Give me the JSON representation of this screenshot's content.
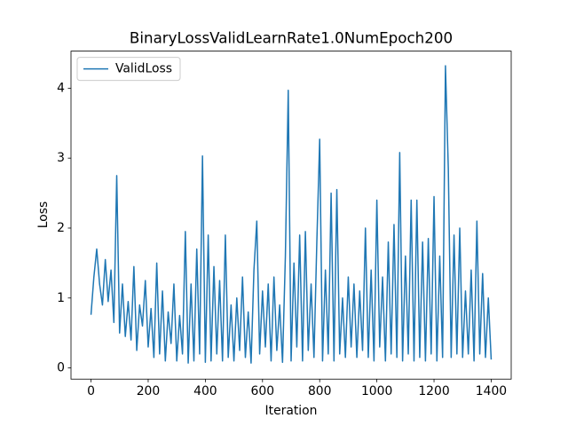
{
  "chart_data": {
    "type": "line",
    "title": "BinaryLossValidLearnRate1.0NumEpoch200",
    "x_label": "Iteration",
    "y_label": "Loss",
    "x": [
      0,
      10,
      20,
      30,
      40,
      50,
      60,
      70,
      80,
      90,
      100,
      110,
      120,
      130,
      140,
      150,
      160,
      170,
      180,
      190,
      200,
      210,
      220,
      230,
      240,
      250,
      260,
      270,
      280,
      290,
      300,
      310,
      320,
      330,
      340,
      350,
      360,
      370,
      380,
      390,
      400,
      410,
      420,
      430,
      440,
      450,
      460,
      470,
      480,
      490,
      500,
      510,
      520,
      530,
      540,
      550,
      560,
      570,
      580,
      590,
      600,
      610,
      620,
      630,
      640,
      650,
      660,
      670,
      680,
      690,
      700,
      710,
      720,
      730,
      740,
      750,
      760,
      770,
      780,
      790,
      800,
      810,
      820,
      830,
      840,
      850,
      860,
      870,
      880,
      890,
      900,
      910,
      920,
      930,
      940,
      950,
      960,
      970,
      980,
      990,
      1000,
      1010,
      1020,
      1030,
      1040,
      1050,
      1060,
      1070,
      1080,
      1090,
      1100,
      1110,
      1120,
      1130,
      1140,
      1150,
      1160,
      1170,
      1180,
      1190,
      1200,
      1210,
      1220,
      1230,
      1240,
      1250,
      1260,
      1270,
      1280,
      1290,
      1300,
      1310,
      1320,
      1330,
      1340,
      1350,
      1360,
      1370,
      1380,
      1390,
      1400
    ],
    "series": [
      {
        "name": "ValidLoss",
        "color": "#1f77b4",
        "values": [
          0.76,
          1.3,
          1.7,
          1.2,
          0.9,
          1.55,
          0.95,
          1.4,
          0.65,
          2.75,
          0.5,
          1.2,
          0.45,
          0.95,
          0.4,
          1.45,
          0.25,
          0.9,
          0.6,
          1.25,
          0.3,
          0.85,
          0.15,
          1.5,
          0.2,
          1.1,
          0.1,
          0.8,
          0.35,
          1.2,
          0.1,
          0.75,
          0.2,
          1.95,
          0.07,
          1.2,
          0.1,
          1.7,
          0.2,
          3.03,
          0.08,
          1.9,
          0.1,
          1.45,
          0.2,
          1.25,
          0.1,
          1.9,
          0.15,
          0.9,
          0.1,
          1.0,
          0.25,
          1.3,
          0.15,
          0.8,
          0.07,
          1.4,
          2.1,
          0.2,
          1.1,
          0.3,
          1.2,
          0.1,
          1.3,
          0.25,
          0.9,
          0.08,
          1.6,
          3.97,
          0.1,
          1.5,
          0.3,
          1.9,
          0.1,
          1.95,
          0.25,
          1.2,
          0.15,
          1.8,
          3.27,
          0.1,
          1.4,
          0.2,
          2.5,
          0.1,
          2.55,
          0.2,
          1.0,
          0.15,
          1.3,
          0.3,
          1.2,
          0.15,
          1.1,
          0.25,
          2.0,
          0.15,
          1.4,
          0.1,
          2.4,
          0.3,
          1.3,
          0.1,
          1.8,
          0.2,
          2.05,
          0.15,
          3.08,
          0.1,
          1.6,
          0.2,
          2.4,
          0.1,
          2.4,
          0.15,
          1.8,
          0.1,
          1.85,
          0.2,
          2.45,
          0.1,
          1.6,
          0.15,
          4.32,
          2.85,
          0.15,
          1.9,
          0.2,
          2.0,
          0.15,
          1.1,
          0.2,
          1.4,
          0.1,
          2.1,
          0.2,
          1.35,
          0.15,
          1.0,
          0.12
        ]
      }
    ],
    "xlim": [
      -70,
      1470
    ],
    "ylim": [
      -0.16,
      4.53
    ],
    "xticks": [
      0,
      200,
      400,
      600,
      800,
      1000,
      1200,
      1400
    ],
    "yticks": [
      0,
      1,
      2,
      3,
      4
    ],
    "grid": false,
    "legend": "upper left"
  }
}
